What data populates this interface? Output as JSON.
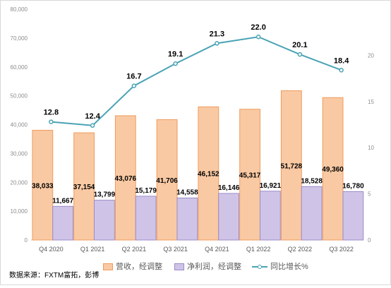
{
  "chart_data": {
    "type": "bar",
    "categories": [
      "Q4 2020",
      "Q1 2021",
      "Q2 2021",
      "Q3 2021",
      "Q4 2021",
      "Q1 2022",
      "Q2 2022",
      "Q3 2022"
    ],
    "series": [
      {
        "name": "营收，经调整",
        "type": "bar",
        "axis": "left",
        "values": [
          38033,
          37154,
          43076,
          41706,
          46152,
          45317,
          51728,
          49360
        ],
        "labels": [
          "38,033",
          "37,154",
          "43,076",
          "41,706",
          "46,152",
          "45,317",
          "51,728",
          "49,360"
        ]
      },
      {
        "name": "净利润，经调整",
        "type": "bar",
        "axis": "left",
        "values": [
          11667,
          13799,
          15179,
          14558,
          16146,
          16921,
          18528,
          16780
        ],
        "labels": [
          "11,667",
          "13,799",
          "15,179",
          "14,558",
          "16,146",
          "16,921",
          "18,528",
          "16,780"
        ]
      },
      {
        "name": "同比增长%",
        "type": "line",
        "axis": "right",
        "values": [
          12.8,
          12.4,
          16.7,
          19.1,
          21.3,
          22.0,
          20.1,
          18.4
        ],
        "labels": [
          "12.8",
          "12.4",
          "16.7",
          "19.1",
          "21.3",
          "22.0",
          "20.1",
          "18.4"
        ]
      }
    ],
    "ylim": [
      0,
      80000
    ],
    "yticks": [
      "0",
      "10,000",
      "20,000",
      "30,000",
      "40,000",
      "50,000",
      "60,000",
      "70,000",
      "80,000"
    ],
    "y2lim": [
      0,
      25
    ],
    "y2ticks": [
      "0",
      "5",
      "10",
      "15",
      "20"
    ],
    "legend_position": "bottom",
    "grid": false
  },
  "source_note": "数据来源：FXTM富拓，彭博",
  "colors": {
    "revenue_fill": "#f9c9a3",
    "revenue_stroke": "#ef9b5e",
    "profit_fill": "#cfc4e7",
    "profit_stroke": "#9b8bc8",
    "growth_line": "#4aa3b5",
    "axis_text": "#8c8c8c"
  }
}
